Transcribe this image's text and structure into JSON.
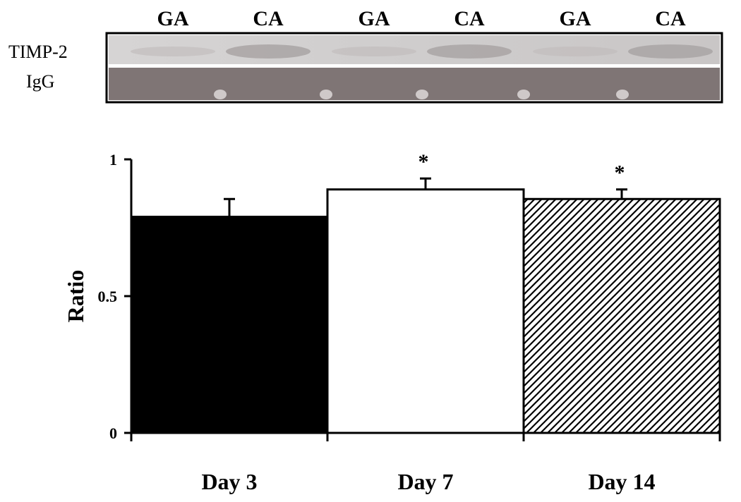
{
  "blot": {
    "lanes": [
      "GA",
      "CA",
      "GA",
      "CA",
      "GA",
      "CA"
    ],
    "rows": [
      "TIMP-2",
      "IgG"
    ]
  },
  "chart_data": {
    "type": "bar",
    "categories": [
      "Day 3",
      "Day 7",
      "Day 14"
    ],
    "values": [
      0.79,
      0.89,
      0.855
    ],
    "errors": [
      0.065,
      0.04,
      0.035
    ],
    "significance": [
      "",
      "*",
      "*"
    ],
    "fills": [
      "solid-black",
      "white",
      "diagonal-hatch"
    ],
    "ylabel": "Ratio",
    "xlabel": "",
    "title": "",
    "ylim": [
      0,
      1
    ],
    "yticks": [
      {
        "value": 0,
        "label": "0"
      },
      {
        "value": 0.5,
        "label": "0.5"
      },
      {
        "value": 1,
        "label": "1"
      }
    ],
    "grid": false,
    "legend": "none"
  },
  "colors": {
    "ink": "#000000",
    "band": "#7f7575",
    "membrane": "#cdcccc"
  }
}
